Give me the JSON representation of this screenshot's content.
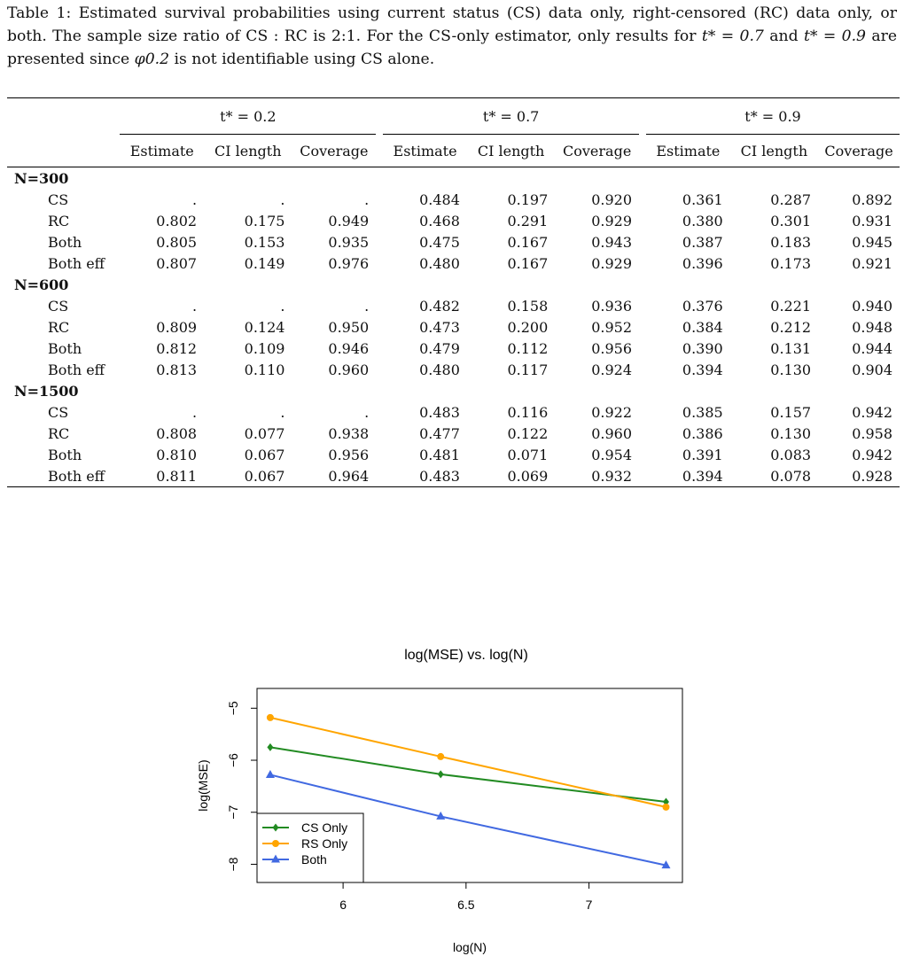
{
  "caption": {
    "lead": "Table 1: Estimated survival probabilities using current status (CS) data only, right-censored (RC) data only, or both. The sample size ratio of CS : RC is 2:1. For the CS-only estimator, only results for ",
    "t_a": "t* = 0.7",
    "and": " and ",
    "t_b": "t* = 0.9",
    "middle": " are presented since ",
    "phi": "φ0.2",
    "tail": " is not identifiable using CS alone."
  },
  "table": {
    "groups": [
      "t* = 0.2",
      "t* = 0.7",
      "t* = 0.9"
    ],
    "columns": [
      "Estimate",
      "CI length",
      "Coverage",
      "Estimate",
      "CI length",
      "Coverage",
      "Estimate",
      "CI length",
      "Coverage"
    ],
    "sections": [
      {
        "label": "N=300",
        "rows": [
          {
            "method": "CS",
            "values": [
              ".",
              ".",
              ".",
              "0.484",
              "0.197",
              "0.920",
              "0.361",
              "0.287",
              "0.892"
            ]
          },
          {
            "method": "RC",
            "values": [
              "0.802",
              "0.175",
              "0.949",
              "0.468",
              "0.291",
              "0.929",
              "0.380",
              "0.301",
              "0.931"
            ]
          },
          {
            "method": "Both",
            "values": [
              "0.805",
              "0.153",
              "0.935",
              "0.475",
              "0.167",
              "0.943",
              "0.387",
              "0.183",
              "0.945"
            ]
          },
          {
            "method": "Both eff",
            "values": [
              "0.807",
              "0.149",
              "0.976",
              "0.480",
              "0.167",
              "0.929",
              "0.396",
              "0.173",
              "0.921"
            ]
          }
        ]
      },
      {
        "label": "N=600",
        "rows": [
          {
            "method": "CS",
            "values": [
              ".",
              ".",
              ".",
              "0.482",
              "0.158",
              "0.936",
              "0.376",
              "0.221",
              "0.940"
            ]
          },
          {
            "method": "RC",
            "values": [
              "0.809",
              "0.124",
              "0.950",
              "0.473",
              "0.200",
              "0.952",
              "0.384",
              "0.212",
              "0.948"
            ]
          },
          {
            "method": "Both",
            "values": [
              "0.812",
              "0.109",
              "0.946",
              "0.479",
              "0.112",
              "0.956",
              "0.390",
              "0.131",
              "0.944"
            ]
          },
          {
            "method": "Both eff",
            "values": [
              "0.813",
              "0.110",
              "0.960",
              "0.480",
              "0.117",
              "0.924",
              "0.394",
              "0.130",
              "0.904"
            ]
          }
        ]
      },
      {
        "label": "N=1500",
        "rows": [
          {
            "method": "CS",
            "values": [
              ".",
              ".",
              ".",
              "0.483",
              "0.116",
              "0.922",
              "0.385",
              "0.157",
              "0.942"
            ]
          },
          {
            "method": "RC",
            "values": [
              "0.808",
              "0.077",
              "0.938",
              "0.477",
              "0.122",
              "0.960",
              "0.386",
              "0.130",
              "0.958"
            ]
          },
          {
            "method": "Both",
            "values": [
              "0.810",
              "0.067",
              "0.956",
              "0.481",
              "0.071",
              "0.954",
              "0.391",
              "0.083",
              "0.942"
            ]
          },
          {
            "method": "Both eff",
            "values": [
              "0.811",
              "0.067",
              "0.964",
              "0.483",
              "0.069",
              "0.932",
              "0.394",
              "0.078",
              "0.928"
            ]
          }
        ]
      }
    ]
  },
  "chart_data": {
    "type": "line",
    "title": "log(MSE) vs. log(N)",
    "xlabel": "log(N)",
    "ylabel": "log(MSE)",
    "xlim": [
      5.65,
      7.38
    ],
    "ylim": [
      -8.35,
      -4.62
    ],
    "xticks": [
      6.0,
      6.5,
      7.0
    ],
    "yticks": [
      -8,
      -7,
      -6,
      -5
    ],
    "ytick_labels": [
      "−8",
      "−7",
      "−6",
      "−5"
    ],
    "x": [
      5.7038,
      6.3969,
      7.3132
    ],
    "series": [
      {
        "name": "CS Only",
        "values": [
          -5.75,
          -6.27,
          -6.8
        ],
        "color": "#228B22",
        "marker": "diamond"
      },
      {
        "name": "RS Only",
        "values": [
          -5.18,
          -5.93,
          -6.9
        ],
        "color": "#FFA500",
        "marker": "circle"
      },
      {
        "name": "Both",
        "values": [
          -6.28,
          -7.08,
          -8.02
        ],
        "color": "#4169E1",
        "marker": "triangle"
      }
    ],
    "legend_position": "bottom-left",
    "grid": false
  }
}
